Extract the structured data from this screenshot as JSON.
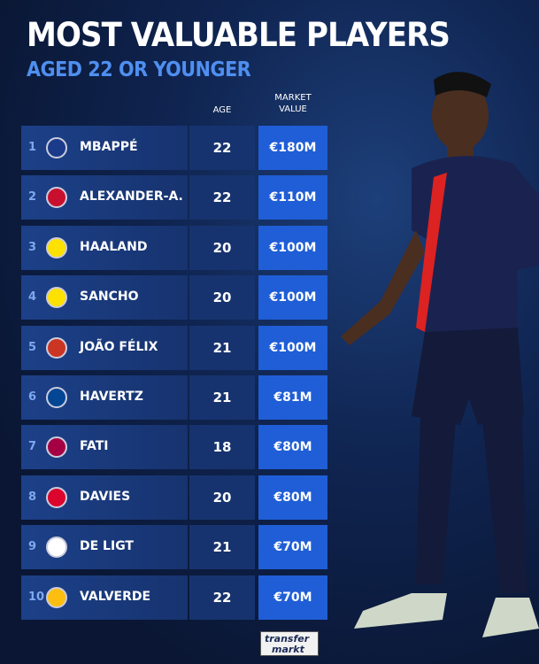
{
  "title": "MOST VALUABLE PLAYERS",
  "subtitle": "AGED 22 OR YOUNGER",
  "headers": {
    "age": "AGE",
    "value_line1": "MARKET",
    "value_line2": "VALUE"
  },
  "players": [
    {
      "rank": "1",
      "name": "MBAPPÉ",
      "age": "22",
      "value": "€180M",
      "club_color": "#1b3a8a"
    },
    {
      "rank": "2",
      "name": "ALEXANDER-A.",
      "age": "22",
      "value": "€110M",
      "club_color": "#c8102e"
    },
    {
      "rank": "3",
      "name": "HAALAND",
      "age": "20",
      "value": "€100M",
      "club_color": "#fde100"
    },
    {
      "rank": "4",
      "name": "SANCHO",
      "age": "20",
      "value": "€100M",
      "club_color": "#fde100"
    },
    {
      "rank": "5",
      "name": "JOÃO FÉLIX",
      "age": "21",
      "value": "€100M",
      "club_color": "#cb3524"
    },
    {
      "rank": "6",
      "name": "HAVERTZ",
      "age": "21",
      "value": "€81M",
      "club_color": "#034694"
    },
    {
      "rank": "7",
      "name": "FATI",
      "age": "18",
      "value": "€80M",
      "club_color": "#a50044"
    },
    {
      "rank": "8",
      "name": "DAVIES",
      "age": "20",
      "value": "€80M",
      "club_color": "#dc052d"
    },
    {
      "rank": "9",
      "name": "DE LIGT",
      "age": "21",
      "value": "€70M",
      "club_color": "#ffffff"
    },
    {
      "rank": "10",
      "name": "VALVERDE",
      "age": "22",
      "value": "€70M",
      "club_color": "#febe10"
    }
  ],
  "logo": {
    "line1": "transfer",
    "line2": "markt"
  }
}
